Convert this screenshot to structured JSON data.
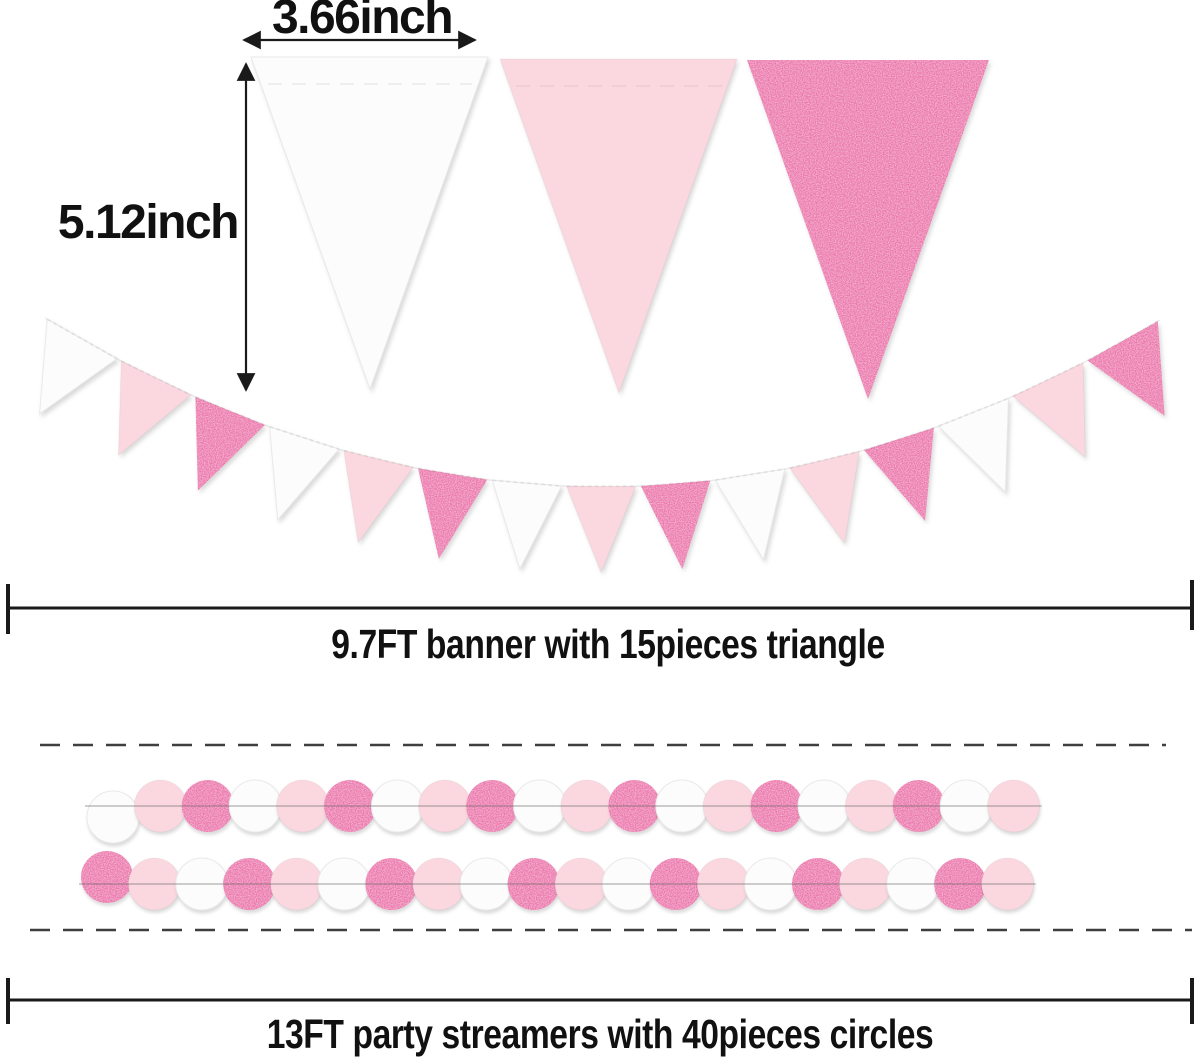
{
  "diagram": {
    "labels": {
      "pennant_width": "3.66inch",
      "pennant_height": "5.12inch"
    },
    "captions": {
      "banner": "9.7FT banner with 15pieces triangle",
      "streamers": "13FT party streamers with 40pieces circles"
    },
    "colors": {
      "background": "#ffffff",
      "white_piece": "#fcfcfc",
      "pink_piece": "#fbd8e0",
      "dark_pink_piece": "#ec74ad",
      "text": "#111111",
      "dimension_line": "#1a1a1a",
      "dashed_line": "#3f3f3f",
      "string": "#9a9a9a"
    },
    "large_pennants": [
      "white_piece",
      "pink_piece",
      "dark_pink_piece"
    ],
    "banner": {
      "piece_count": 15,
      "sequence": [
        "white_piece",
        "pink_piece",
        "dark_pink_piece",
        "white_piece",
        "pink_piece",
        "dark_pink_piece",
        "white_piece",
        "pink_piece",
        "dark_pink_piece",
        "white_piece",
        "pink_piece",
        "dark_pink_piece",
        "white_piece",
        "pink_piece",
        "dark_pink_piece"
      ]
    },
    "streamers": {
      "circle_count": 40,
      "rows": [
        {
          "sequence": [
            "white_piece",
            "pink_piece",
            "dark_pink_piece",
            "white_piece",
            "pink_piece",
            "dark_pink_piece",
            "white_piece",
            "pink_piece",
            "dark_pink_piece",
            "white_piece",
            "pink_piece",
            "dark_pink_piece",
            "white_piece",
            "pink_piece",
            "dark_pink_piece",
            "white_piece",
            "pink_piece",
            "dark_pink_piece",
            "white_piece",
            "pink_piece"
          ]
        },
        {
          "sequence": [
            "dark_pink_piece",
            "pink_piece",
            "white_piece",
            "dark_pink_piece",
            "pink_piece",
            "white_piece",
            "dark_pink_piece",
            "pink_piece",
            "white_piece",
            "dark_pink_piece",
            "pink_piece",
            "white_piece",
            "dark_pink_piece",
            "pink_piece",
            "white_piece",
            "dark_pink_piece",
            "pink_piece",
            "white_piece",
            "dark_pink_piece",
            "pink_piece"
          ]
        }
      ]
    }
  }
}
